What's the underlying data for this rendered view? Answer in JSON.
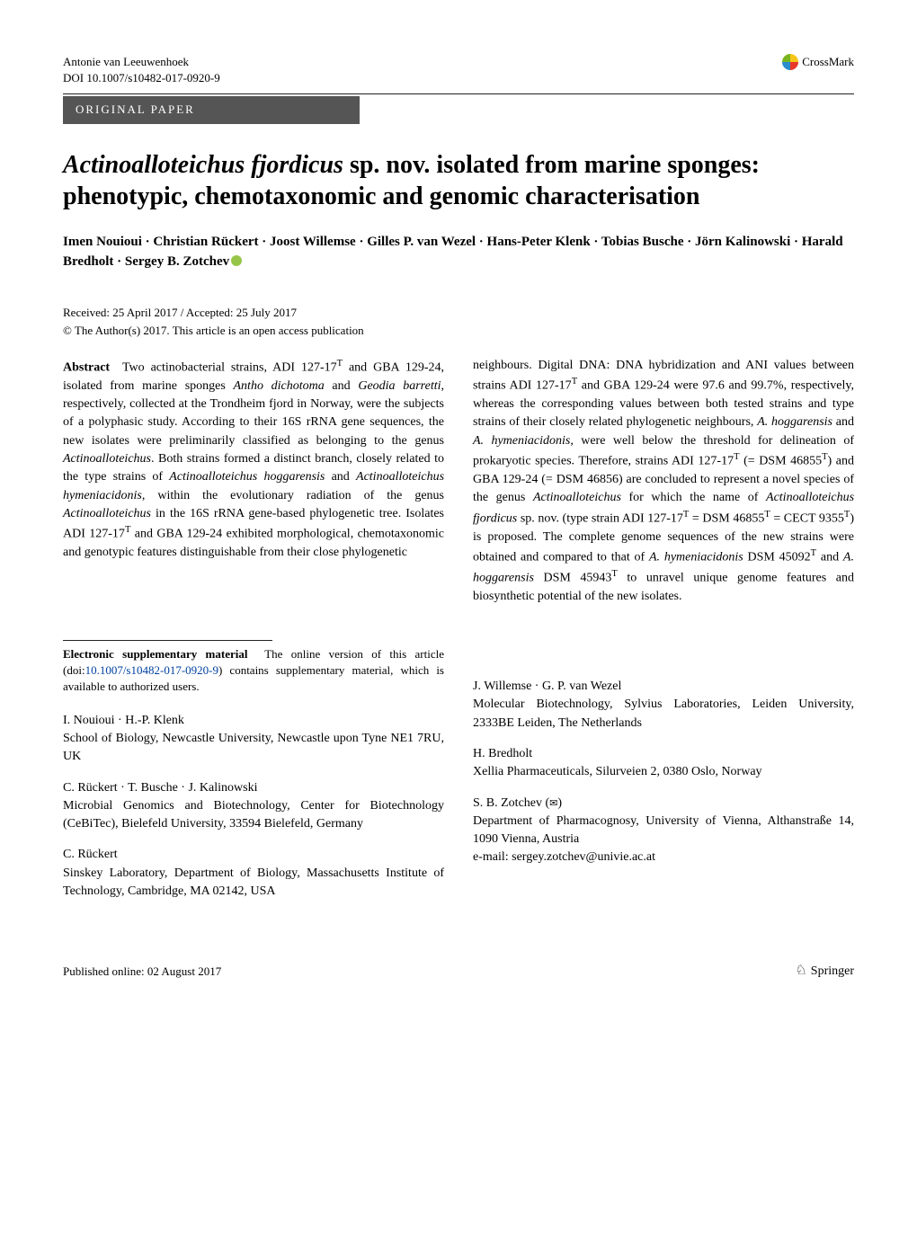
{
  "header": {
    "journal": "Antonie van Leeuwenhoek",
    "doi": "DOI 10.1007/s10482-017-0920-9",
    "crossmark_label": "CrossMark"
  },
  "paper_type": "ORIGINAL PAPER",
  "title_html": "<span class=\"species\">Actinoalloteichus fjordicus</span> sp. nov. isolated from marine sponges: phenotypic, chemotaxonomic and genomic characterisation",
  "authors_html": "Imen Nouioui · Christian Rückert · Joost Willemse · Gilles P. van Wezel · Hans-Peter Klenk · Tobias Busche · Jörn Kalinowski · Harald Bredholt · Sergey B. Zotchev",
  "dates": "Received: 25 April 2017 / Accepted: 25 July 2017",
  "copyright": "© The Author(s) 2017. This article is an open access publication",
  "abstract_left_html": "<span class=\"abs-label\">Abstract</span>&nbsp;&nbsp;Two actinobacterial strains, ADI 127-17<sup>T</sup> and GBA 129-24, isolated from marine sponges <span class=\"italic\">Antho dichotoma</span> and <span class=\"italic\">Geodia barretti</span>, respectively, collected at the Trondheim fjord in Norway, were the subjects of a polyphasic study. According to their 16S rRNA gene sequences, the new isolates were preliminarily classified as belonging to the genus <span class=\"italic\">Actinoalloteichus</span>. Both strains formed a distinct branch, closely related to the type strains of <span class=\"italic\">Actinoalloteichus hoggarensis</span> and <span class=\"italic\">Actinoalloteichus hymeniacidonis</span>, within the evolutionary radiation of the genus <span class=\"italic\">Actinoalloteichus</span> in the 16S rRNA gene-based phylogenetic tree. Isolates ADI 127-17<sup>T</sup> and GBA 129-24 exhibited morphological, chemotaxonomic and genotypic features distinguishable from their close phylogenetic",
  "abstract_right_html": "neighbours. Digital DNA: DNA hybridization and ANI values between strains ADI 127-17<sup>T</sup> and GBA 129-24 were 97.6 and 99.7%, respectively, whereas the corresponding values between both tested strains and type strains of their closely related phylogenetic neighbours, <span class=\"italic\">A. hoggarensis</span> and <span class=\"italic\">A. hymeniacidonis</span>, were well below the threshold for delineation of prokaryotic species. Therefore, strains ADI 127-17<sup>T</sup> (= DSM 46855<sup>T</sup>) and GBA 129-24 (= DSM 46856) are concluded to represent a novel species of the genus <span class=\"italic\">Actinoalloteichus</span> for which the name of <span class=\"italic\">Actinoalloteichus fjordicus</span> sp. nov. (type strain ADI 127-17<sup>T</sup> = DSM 46855<sup>T</sup> = CECT 9355<sup>T</sup>) is proposed. The complete genome sequences of the new strains were obtained and compared to that of <span class=\"italic\">A. hymeniacidonis</span> DSM 45092<sup>T</sup> and <span class=\"italic\">A. hoggarensis</span> DSM 45943<sup>T</sup> to unravel unique genome features and biosynthetic potential of the new isolates.",
  "supp_heading": "Electronic supplementary material",
  "supp_body_html": "The online version of this article (doi:<span class=\"link\">10.1007/s10482-017-0920-9</span>) contains supplementary material, which is available to authorized users.",
  "affiliations": {
    "left": [
      {
        "names": "I. Nouioui · H.-P. Klenk",
        "addr": "School of Biology, Newcastle University, Newcastle upon Tyne NE1 7RU, UK"
      },
      {
        "names": "C. Rückert · T. Busche · J. Kalinowski",
        "addr": "Microbial Genomics and Biotechnology, Center for Biotechnology (CeBiTec), Bielefeld University, 33594 Bielefeld, Germany"
      },
      {
        "names": "C. Rückert",
        "addr": "Sinskey Laboratory, Department of Biology, Massachusetts Institute of Technology, Cambridge, MA 02142, USA"
      }
    ],
    "right": [
      {
        "names": "J. Willemse · G. P. van Wezel",
        "addr": "Molecular Biotechnology, Sylvius Laboratories, Leiden University, 2333BE Leiden, The Netherlands"
      },
      {
        "names": "H. Bredholt",
        "addr": "Xellia Pharmaceuticals, Silurveien 2, 0380 Oslo, Norway"
      },
      {
        "names_html": "S. B. Zotchev (<span class=\"mail-icon\">✉</span>)",
        "addr": "Department of Pharmacognosy, University of Vienna, Althanstraße 14, 1090 Vienna, Austria",
        "email": "e-mail: sergey.zotchev@univie.ac.at"
      }
    ]
  },
  "footer": {
    "published": "Published online: 02 August 2017",
    "publisher": "Springer"
  },
  "colors": {
    "bar_bg": "#555555",
    "link": "#0041a3",
    "orcid": "#97c549"
  }
}
